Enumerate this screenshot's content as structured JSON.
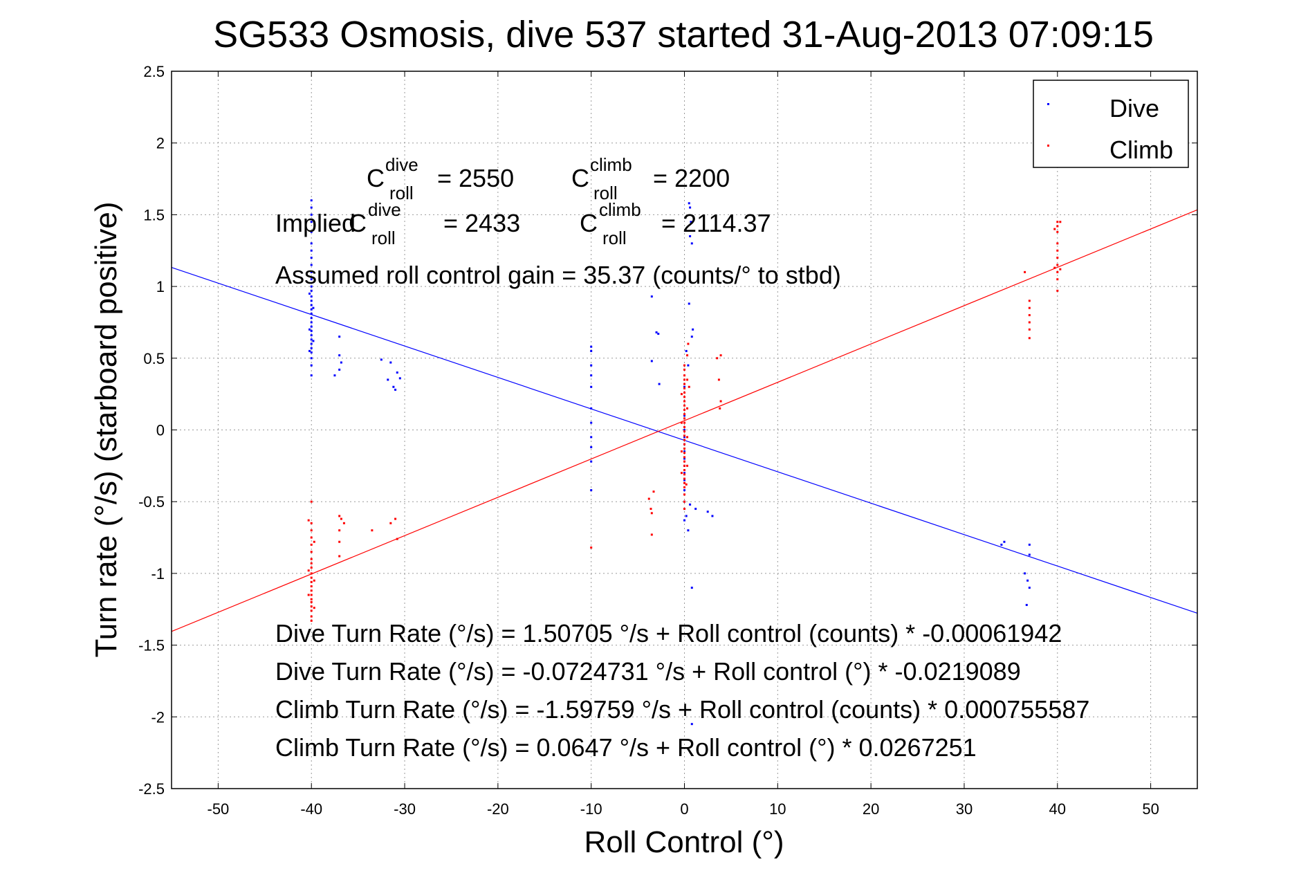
{
  "chart_data": {
    "type": "scatter",
    "title": "SG533 Osmosis, dive 537 started 31-Aug-2013 07:09:15",
    "xlabel": "Roll Control (°)",
    "ylabel": "Turn rate (°/s)  (starboard positive)",
    "xlim": [
      -55,
      55
    ],
    "ylim": [
      -2.5,
      2.5
    ],
    "xticks": [
      -50,
      -40,
      -30,
      -20,
      -10,
      0,
      10,
      20,
      30,
      40,
      50
    ],
    "yticks": [
      -2.5,
      -2,
      -1.5,
      -1,
      -0.5,
      0,
      0.5,
      1,
      1.5,
      2,
      2.5
    ],
    "xtick_labels": [
      "-50",
      "-40",
      "-30",
      "-20",
      "-10",
      "0",
      "10",
      "20",
      "30",
      "40",
      "50"
    ],
    "ytick_labels": [
      "-2.5",
      "-2",
      "-1.5",
      "-1",
      "-0.5",
      "0",
      "0.5",
      "1",
      "1.5",
      "2",
      "2.5"
    ],
    "grid": true,
    "legend_position": "top-right",
    "series": [
      {
        "name": "Dive",
        "color": "#0000ff",
        "marker": "point",
        "points": [
          [
            -40,
            1.6
          ],
          [
            -40,
            1.55
          ],
          [
            -40,
            1.5
          ],
          [
            -40,
            1.45
          ],
          [
            -40,
            1.38
          ],
          [
            -40,
            1.3
          ],
          [
            -40,
            1.25
          ],
          [
            -40,
            1.2
          ],
          [
            -40,
            1.15
          ],
          [
            -40,
            1.1
          ],
          [
            -40,
            1.05
          ],
          [
            -40,
            1.0
          ],
          [
            -40,
            0.97
          ],
          [
            -40,
            0.93
          ],
          [
            -40,
            0.9
          ],
          [
            -40,
            0.87
          ],
          [
            -40,
            0.84
          ],
          [
            -40,
            0.81
          ],
          [
            -40,
            0.78
          ],
          [
            -40,
            0.75
          ],
          [
            -40,
            0.72
          ],
          [
            -40,
            0.69
          ],
          [
            -40,
            0.66
          ],
          [
            -40,
            0.63
          ],
          [
            -40,
            0.6
          ],
          [
            -40,
            0.57
          ],
          [
            -40,
            0.54
          ],
          [
            -40,
            0.5
          ],
          [
            -40,
            0.45
          ],
          [
            -40,
            0.38
          ],
          [
            -40.2,
            0.95
          ],
          [
            -39.8,
            0.85
          ],
          [
            -40.2,
            0.7
          ],
          [
            -39.8,
            0.62
          ],
          [
            -40.2,
            0.55
          ],
          [
            -37,
            0.65
          ],
          [
            -37,
            0.52
          ],
          [
            -37,
            0.42
          ],
          [
            -37.5,
            0.38
          ],
          [
            -36.8,
            0.47
          ],
          [
            -32.5,
            0.49
          ],
          [
            -31.5,
            0.47
          ],
          [
            -31.8,
            0.35
          ],
          [
            -31.2,
            0.3
          ],
          [
            -30.8,
            0.4
          ],
          [
            -30.5,
            0.36
          ],
          [
            -31,
            0.28
          ],
          [
            -10,
            0.58
          ],
          [
            -10,
            0.55
          ],
          [
            -10,
            0.45
          ],
          [
            -10,
            0.38
          ],
          [
            -10,
            0.3
          ],
          [
            -10,
            0.15
          ],
          [
            -10,
            0.05
          ],
          [
            -10,
            -0.12
          ],
          [
            -10,
            -0.22
          ],
          [
            -10,
            -0.42
          ],
          [
            -10,
            -0.05
          ],
          [
            -3.5,
            0.93
          ],
          [
            -3,
            0.68
          ],
          [
            -2.8,
            0.67
          ],
          [
            -3.5,
            0.48
          ],
          [
            -2.7,
            0.32
          ],
          [
            0.5,
            1.58
          ],
          [
            0.6,
            1.55
          ],
          [
            0.7,
            1.45
          ],
          [
            0.6,
            1.35
          ],
          [
            0.8,
            1.3
          ],
          [
            0.5,
            0.88
          ],
          [
            0.8,
            0.65
          ],
          [
            0.9,
            0.7
          ],
          [
            0.2,
            0.55
          ],
          [
            0.4,
            0.45
          ],
          [
            0,
            0.3
          ],
          [
            0,
            0.2
          ],
          [
            0,
            0.1
          ],
          [
            0,
            0.0
          ],
          [
            0,
            -0.05
          ],
          [
            0,
            -0.1
          ],
          [
            0,
            -0.15
          ],
          [
            0,
            -0.2
          ],
          [
            0,
            -0.25
          ],
          [
            0,
            -0.3
          ],
          [
            0,
            -0.35
          ],
          [
            0,
            -0.42
          ],
          [
            0,
            -0.5
          ],
          [
            0,
            -0.55
          ],
          [
            0,
            -0.63
          ],
          [
            0.2,
            -0.6
          ],
          [
            0.4,
            -0.7
          ],
          [
            0.8,
            -1.1
          ],
          [
            1.2,
            -0.55
          ],
          [
            2.5,
            -0.57
          ],
          [
            3,
            -0.6
          ],
          [
            0.8,
            -2.05
          ],
          [
            0.6,
            -0.52
          ],
          [
            34,
            -0.8
          ],
          [
            34.3,
            -0.78
          ],
          [
            36.5,
            -1.0
          ],
          [
            36.8,
            -1.05
          ],
          [
            37,
            -1.1
          ],
          [
            36.7,
            -1.22
          ],
          [
            37,
            -0.87
          ],
          [
            37,
            -0.8
          ]
        ]
      },
      {
        "name": "Climb",
        "color": "#ff0000",
        "marker": "point",
        "points": [
          [
            -40,
            -0.5
          ],
          [
            -40,
            -0.65
          ],
          [
            -40,
            -0.7
          ],
          [
            -40,
            -0.75
          ],
          [
            -40,
            -0.8
          ],
          [
            -40,
            -0.85
          ],
          [
            -40,
            -0.9
          ],
          [
            -40,
            -0.93
          ],
          [
            -40,
            -0.96
          ],
          [
            -40,
            -1.0
          ],
          [
            -40,
            -1.03
          ],
          [
            -40,
            -1.06
          ],
          [
            -40,
            -1.09
          ],
          [
            -40,
            -1.12
          ],
          [
            -40,
            -1.15
          ],
          [
            -40,
            -1.18
          ],
          [
            -40,
            -1.2
          ],
          [
            -40,
            -1.23
          ],
          [
            -40,
            -1.26
          ],
          [
            -40,
            -1.3
          ],
          [
            -40,
            -1.33
          ],
          [
            -40.3,
            -0.63
          ],
          [
            -39.7,
            -0.78
          ],
          [
            -40.3,
            -0.98
          ],
          [
            -39.7,
            -1.05
          ],
          [
            -40.3,
            -1.15
          ],
          [
            -39.7,
            -1.24
          ],
          [
            -37,
            -0.6
          ],
          [
            -37,
            -0.7
          ],
          [
            -37,
            -0.78
          ],
          [
            -37,
            -0.88
          ],
          [
            -36.5,
            -0.65
          ],
          [
            -36.8,
            -0.62
          ],
          [
            -33.5,
            -0.7
          ],
          [
            -31.5,
            -0.65
          ],
          [
            -31,
            -0.62
          ],
          [
            -30.8,
            -0.76
          ],
          [
            -10,
            -0.82
          ],
          [
            -3.8,
            -0.48
          ],
          [
            -3.6,
            -0.55
          ],
          [
            -3.5,
            -0.58
          ],
          [
            -3.3,
            -0.43
          ],
          [
            -3.5,
            -0.73
          ],
          [
            0,
            0.45
          ],
          [
            0,
            0.42
          ],
          [
            0,
            0.38
          ],
          [
            0,
            0.35
          ],
          [
            0,
            0.32
          ],
          [
            0,
            0.29
          ],
          [
            0,
            0.26
          ],
          [
            0,
            0.23
          ],
          [
            0,
            0.2
          ],
          [
            0,
            0.17
          ],
          [
            0,
            0.14
          ],
          [
            0,
            0.11
          ],
          [
            0,
            0.08
          ],
          [
            0,
            0.05
          ],
          [
            0,
            0.02
          ],
          [
            0,
            -0.01
          ],
          [
            0,
            -0.04
          ],
          [
            0,
            -0.07
          ],
          [
            0,
            -0.1
          ],
          [
            0,
            -0.13
          ],
          [
            0,
            -0.16
          ],
          [
            0,
            -0.19
          ],
          [
            0,
            -0.22
          ],
          [
            0,
            -0.25
          ],
          [
            0,
            -0.28
          ],
          [
            0,
            -0.31
          ],
          [
            0,
            -0.34
          ],
          [
            0,
            -0.37
          ],
          [
            0,
            -0.4
          ],
          [
            0,
            -0.45
          ],
          [
            0,
            -0.5
          ],
          [
            0,
            -0.55
          ],
          [
            -0.3,
            0.25
          ],
          [
            0.3,
            0.15
          ],
          [
            -0.3,
            0.05
          ],
          [
            0.3,
            -0.05
          ],
          [
            -0.3,
            -0.15
          ],
          [
            0.3,
            -0.25
          ],
          [
            -0.3,
            -0.3
          ],
          [
            0.3,
            0.35
          ],
          [
            0.2,
            -0.38
          ],
          [
            0.3,
            0.52
          ],
          [
            0.5,
            0.3
          ],
          [
            0.4,
            0.6
          ],
          [
            3.5,
            0.5
          ],
          [
            3.7,
            0.35
          ],
          [
            3.9,
            0.2
          ],
          [
            3.8,
            0.15
          ],
          [
            3.9,
            0.52
          ],
          [
            36.5,
            1.1
          ],
          [
            37,
            0.9
          ],
          [
            37,
            0.85
          ],
          [
            37,
            0.8
          ],
          [
            37,
            0.75
          ],
          [
            37,
            0.7
          ],
          [
            37,
            0.64
          ],
          [
            40,
            1.45
          ],
          [
            40,
            1.42
          ],
          [
            40,
            1.38
          ],
          [
            40,
            1.3
          ],
          [
            40,
            1.25
          ],
          [
            40,
            1.2
          ],
          [
            40,
            1.15
          ],
          [
            40,
            1.1
          ],
          [
            40,
            1.05
          ],
          [
            40,
            0.97
          ],
          [
            39.7,
            1.4
          ],
          [
            40.3,
            1.45
          ],
          [
            39.7,
            1.13
          ],
          [
            40.3,
            1.12
          ]
        ]
      }
    ],
    "fit_lines": [
      {
        "name": "Dive fit",
        "color": "#0000ff",
        "x": [
          -55,
          55
        ],
        "y": [
          1.1326,
          -1.2774
        ]
      },
      {
        "name": "Climb fit",
        "color": "#ff0000",
        "x": [
          -55,
          55
        ],
        "y": [
          -1.4047,
          1.5342
        ]
      }
    ],
    "legend": [
      {
        "label": "Dive",
        "color": "#0000ff"
      },
      {
        "label": "Climb",
        "color": "#ff0000"
      }
    ],
    "annotations": {
      "c_dive": {
        "base": "C",
        "sup": "dive",
        "sub": "roll",
        "value": "= 2550"
      },
      "c_climb": {
        "base": "C",
        "sup": "climb",
        "sub": "roll",
        "value": "= 2200"
      },
      "implied_prefix": "Implied",
      "implied_dive": {
        "base": "C",
        "sup": "dive",
        "sub": "roll",
        "value": "= 2433"
      },
      "implied_climb": {
        "base": "C",
        "sup": "climb",
        "sub": "roll",
        "value": "= 2114.37"
      },
      "gain": "Assumed roll control gain = 35.37 (counts/° to stbd)",
      "equations": [
        "Dive Turn Rate (°/s) = 1.50705 °/s + Roll control (counts) * -0.00061942",
        "Dive Turn Rate (°/s) = -0.0724731 °/s + Roll control (°) * -0.0219089",
        "Climb Turn Rate (°/s) = -1.59759 °/s + Roll control (counts) * 0.000755587",
        "Climb Turn Rate (°/s) = 0.0647 °/s + Roll control (°) * 0.0267251"
      ]
    }
  }
}
